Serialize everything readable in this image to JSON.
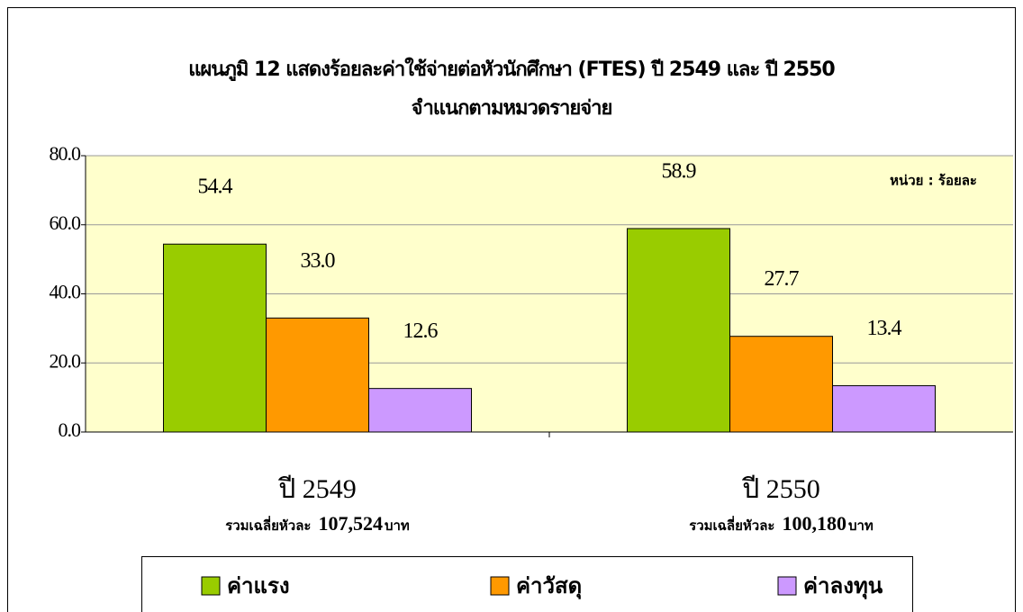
{
  "chart_data": {
    "type": "bar",
    "title": "แผนภูมิ 12 แสดงร้อยละค่าใช้จ่ายต่อหัวนักศึกษา (FTES) ปี 2549 และ ปี 2550",
    "subtitle": "จำแนกตามหมวดรายจ่าย",
    "unit_note": "หน่วย : ร้อยละ",
    "categories": [
      "ปี 2549",
      "ปี 2550"
    ],
    "category_notes": [
      {
        "prefix": "รวมเฉลี่ยหัวละ",
        "amount": {
          "value": 107524,
          "label": "107,524"
        },
        "unit": "บาท"
      },
      {
        "prefix": "รวมเฉลี่ยหัวละ",
        "amount": {
          "value": 100180,
          "label": "100,180"
        },
        "unit": "บาท"
      }
    ],
    "series": [
      {
        "name": "ค่าแรง",
        "color": "#99cc00",
        "values": [
          54.4,
          58.9
        ],
        "value_labels": [
          "54.4",
          "58.9"
        ]
      },
      {
        "name": "ค่าวัสดุ",
        "color": "#ff9900",
        "values": [
          33.0,
          27.7
        ],
        "value_labels": [
          "33.0",
          "27.7"
        ]
      },
      {
        "name": "ค่าลงทุน",
        "color": "#cc99ff",
        "values": [
          12.6,
          13.4
        ],
        "value_labels": [
          "12.6",
          "13.4"
        ]
      }
    ],
    "ylim": [
      0,
      80
    ],
    "yticks": [
      {
        "value": 0,
        "label": "0.0"
      },
      {
        "value": 20,
        "label": "20.0"
      },
      {
        "value": 40,
        "label": "40.0"
      },
      {
        "value": 60,
        "label": "60.0"
      },
      {
        "value": 80,
        "label": "80.0"
      }
    ],
    "grid": true,
    "plot_background": "#ffffcc",
    "legend": "bottom"
  }
}
